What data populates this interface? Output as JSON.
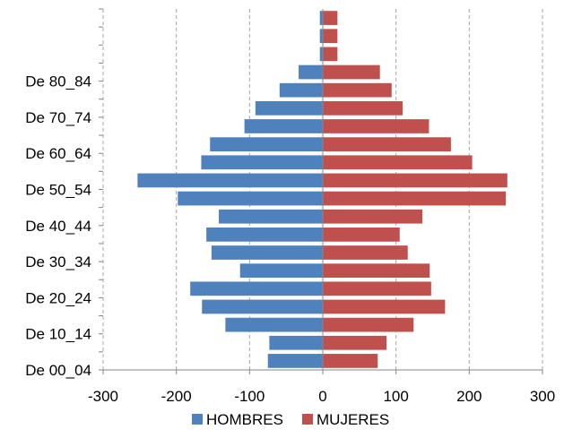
{
  "chart_data": {
    "type": "bar",
    "orientation": "horizontal",
    "title": "",
    "xlabel": "",
    "ylabel": "",
    "xlim": [
      -300,
      300
    ],
    "xticks": [
      -300,
      -200,
      -100,
      0,
      100,
      200,
      300
    ],
    "grid": true,
    "legend_position": "bottom",
    "categories": [
      "De 00_04",
      "",
      "De 10_14",
      "",
      "De 20_24",
      "",
      "De 30_34",
      "",
      "De 40_44",
      "",
      "De 50_54",
      "",
      "De 60_64",
      "",
      "De 70_74",
      "",
      "De 80_84",
      "",
      "",
      ""
    ],
    "series": [
      {
        "name": "HOMBRES",
        "color": "#4f81bd",
        "values": [
          -75,
          -73,
          -133,
          -165,
          -181,
          -113,
          -152,
          -159,
          -142,
          -198,
          -253,
          -166,
          -154,
          -107,
          -92,
          -59,
          -33,
          -4,
          -4,
          -4
        ]
      },
      {
        "name": "MUJERES",
        "color": "#c0504d",
        "values": [
          75,
          87,
          124,
          167,
          148,
          146,
          116,
          105,
          136,
          250,
          252,
          204,
          175,
          145,
          109,
          94,
          78,
          20,
          20,
          20
        ]
      }
    ]
  }
}
